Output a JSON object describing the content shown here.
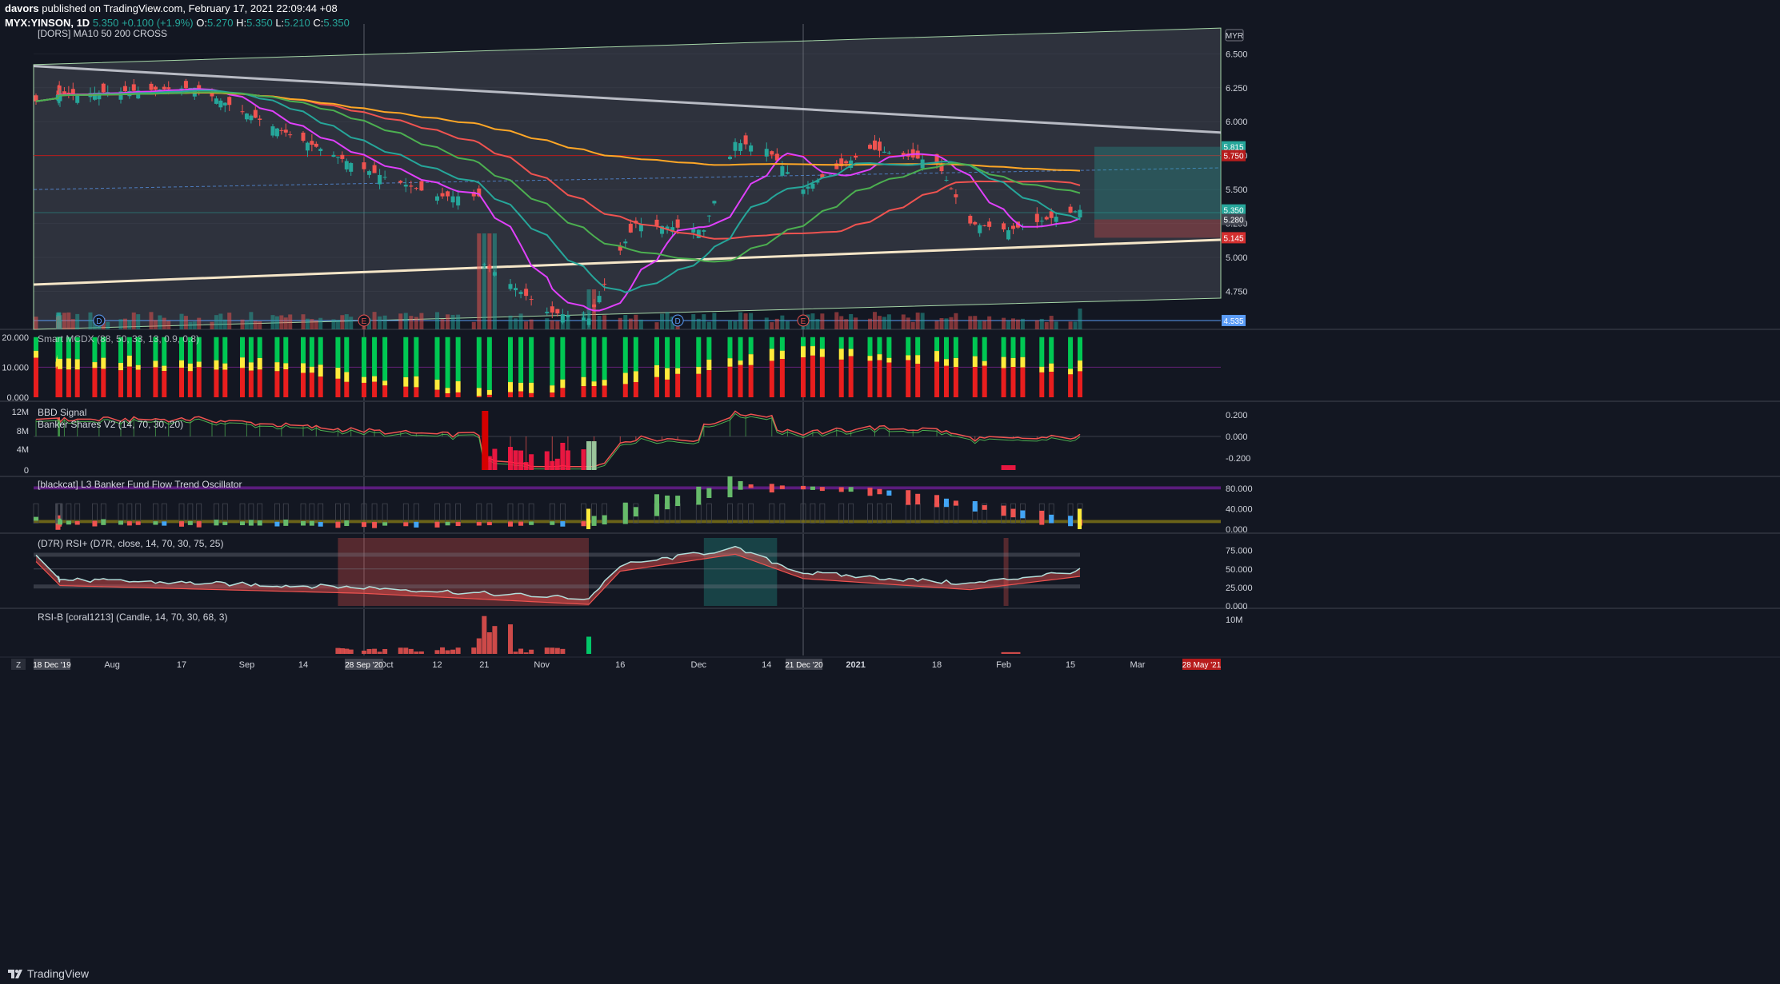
{
  "header": {
    "line1_user": "davors",
    "line1_rest": " published on TradingView.com, February 17, 2021 22:09:44 +08",
    "line2_symbol": "MYX:YINSON, 1D",
    "line2_price": "5.350",
    "line2_change": "+0.100 (+1.9%)",
    "line2_o": "O:",
    "line2_o_val": "5.270",
    "line2_h": "H:",
    "line2_h_val": "5.350",
    "line2_l": "L:",
    "line2_l_val": "5.210",
    "line2_c": "C:",
    "line2_c_val": "5.350"
  },
  "colors": {
    "background": "#131722",
    "up": "#26a69a",
    "down": "#ef5350",
    "grid": "#2a2e39",
    "text": "#d1d4dc"
  },
  "footer": {
    "logo_text": "TradingView"
  },
  "time_axis": {
    "labels": [
      "Aug",
      "17",
      "Sep",
      "14",
      "Oct",
      "12",
      "21",
      "Nov",
      "16",
      "Dec",
      "14",
      "2021",
      "18",
      "Feb",
      "15",
      "Mar"
    ],
    "marker_start": "18 Dec '19",
    "marker_sep": "28 Sep '20",
    "marker_dec": "21 Dec '20",
    "marker_end": "28 May '21",
    "corner": "Z"
  },
  "chart_data": [
    {
      "name": "price",
      "type": "candlestick",
      "title": "[DORS] MA10 50 200 CROSS",
      "currency": "MYR",
      "ylim": [
        4.47,
        6.72
      ],
      "y_ticks": [
        "6.500",
        "6.250",
        "6.000",
        "5.750",
        "5.500",
        "5.250",
        "5.000",
        "4.750"
      ],
      "last_close": 5.35,
      "price_labels": [
        {
          "value": "5.815",
          "color": "#26a69a"
        },
        {
          "value": "5.750",
          "color": "#b71c1c"
        },
        {
          "value": "5.350",
          "color": "#26a69a"
        },
        {
          "value": "5.280",
          "color": "#434651"
        },
        {
          "value": "5.145",
          "color": "#d32f2f"
        },
        {
          "value": "4.535",
          "color": "#5b9cf6"
        }
      ],
      "key_points": [
        {
          "date": "2019-12-18",
          "close": 6.15
        },
        {
          "date": "2020-07-20",
          "close": 6.2
        },
        {
          "date": "2020-08-20",
          "close": 6.25
        },
        {
          "date": "2020-09-08",
          "close": 5.95
        },
        {
          "date": "2020-09-28",
          "close": 5.65
        },
        {
          "date": "2020-10-12",
          "close": 5.45
        },
        {
          "date": "2020-10-20",
          "close": 5.45
        },
        {
          "date": "2020-10-21",
          "close": 4.95
        },
        {
          "date": "2020-11-02",
          "close": 4.6
        },
        {
          "date": "2020-11-10",
          "close": 4.55
        },
        {
          "date": "2020-11-16",
          "close": 5.05
        },
        {
          "date": "2020-11-19",
          "close": 5.25
        },
        {
          "date": "2020-12-02",
          "close": 5.2
        },
        {
          "date": "2020-12-08",
          "close": 5.85
        },
        {
          "date": "2020-12-14",
          "close": 5.8
        },
        {
          "date": "2020-12-21",
          "close": 5.5
        },
        {
          "date": "2021-01-04",
          "close": 5.8
        },
        {
          "date": "2021-01-18",
          "close": 5.7
        },
        {
          "date": "2021-01-25",
          "close": 5.25
        },
        {
          "date": "2021-02-02",
          "close": 5.2
        },
        {
          "date": "2021-02-17",
          "close": 5.35
        }
      ],
      "moving_averages": [
        {
          "name": "MA10",
          "color": "#e040fb"
        },
        {
          "name": "MA50",
          "color": "#ef5350"
        },
        {
          "name": "MA200",
          "color": "#ffa726"
        },
        {
          "name": "MA",
          "color": "#26a69a"
        },
        {
          "name": "MA",
          "color": "#4caf50"
        }
      ],
      "event_markers": [
        "D",
        "E",
        "D",
        "E"
      ]
    },
    {
      "name": "smart-money",
      "type": "bar",
      "title": "Smart MCDX (88, 50, 33, 13, 0.9, 0.8)",
      "ylim": [
        0,
        21
      ],
      "y_ticks": [
        "20.000",
        "10.000",
        "0.000"
      ],
      "colors": {
        "retail": "#00c853",
        "hot_money": "#ffeb3b",
        "banker": "#e91e1e"
      },
      "banker_samples": [
        {
          "date": "2019-12-18",
          "value": 13
        },
        {
          "date": "2020-09-08",
          "value": 9
        },
        {
          "date": "2020-10-21",
          "value": 0.5
        },
        {
          "date": "2020-11-16",
          "value": 4
        },
        {
          "date": "2020-12-21",
          "value": 14
        },
        {
          "date": "2021-02-17",
          "value": 8
        }
      ]
    },
    {
      "name": "bbd-signal",
      "type": "line",
      "title": "BBD Signal",
      "subtitle": "Banker Shares V2 (14, 70, 30, 20)",
      "y_left": [
        "12M",
        "8M",
        "4M",
        "0"
      ],
      "y_right": [
        "0.200",
        "0.000",
        "-0.200"
      ],
      "ylim_right": [
        -0.3,
        0.25
      ]
    },
    {
      "name": "fund-flow",
      "type": "bar",
      "title": "[blackcat] L3 Banker Fund Flow Trend Oscillator",
      "ylim": [
        0,
        95
      ],
      "y_ticks": [
        "80.000",
        "40.000",
        "0.000"
      ],
      "key_points": [
        {
          "date": "2019-12-18",
          "value": 20
        },
        {
          "date": "2020-09-28",
          "value": 10
        },
        {
          "date": "2020-11-10",
          "value": 12
        },
        {
          "date": "2020-12-08",
          "value": 85
        },
        {
          "date": "2021-01-04",
          "value": 75
        },
        {
          "date": "2021-02-17",
          "value": 12
        }
      ]
    },
    {
      "name": "rsi-plus",
      "type": "line",
      "title": "(D7R) RSI+ (D7R, close, 14, 70, 30, 75, 25)",
      "ylim": [
        0,
        100
      ],
      "y_ticks": [
        "75.000",
        "50.000",
        "25.000",
        "0.000"
      ],
      "bands": [
        70,
        30
      ],
      "key_points": [
        {
          "date": "2019-12-18",
          "value": 68
        },
        {
          "date": "2020-09-28",
          "value": 25
        },
        {
          "date": "2020-11-10",
          "value": 10
        },
        {
          "date": "2020-11-16",
          "value": 55
        },
        {
          "date": "2020-12-08",
          "value": 78
        },
        {
          "date": "2020-12-21",
          "value": 45
        },
        {
          "date": "2021-01-25",
          "value": 30
        },
        {
          "date": "2021-02-17",
          "value": 48
        }
      ]
    },
    {
      "name": "rsi-b",
      "type": "bar",
      "title": "RSI-B [coral1213] (Candle, 14, 70, 30, 68, 3)",
      "y_ticks": [
        "10M"
      ],
      "ylim": [
        0,
        12
      ]
    }
  ]
}
